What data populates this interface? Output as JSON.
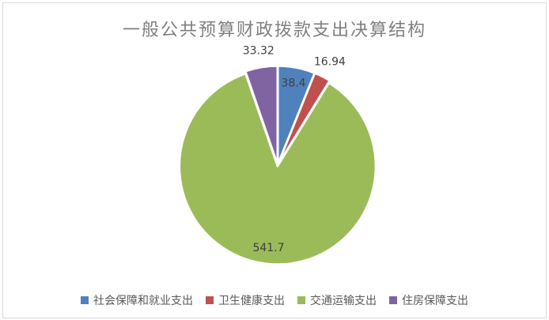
{
  "chart_data": {
    "type": "pie",
    "title": "一般公共预算财政拨款支出决算结构",
    "slices": [
      {
        "name": "社会保障和就业支出",
        "value": 38.4,
        "label": "38.4",
        "color": "#4f81bd",
        "label_position": "inside"
      },
      {
        "name": "卫生健康支出",
        "value": 16.94,
        "label": "16.94",
        "color": "#c0504d",
        "label_position": "outside"
      },
      {
        "name": "交通运输支出",
        "value": 541.7,
        "label": "541.7",
        "color": "#9bbb59",
        "label_position": "inside"
      },
      {
        "name": "住房保障支出",
        "value": 33.32,
        "label": "33.32",
        "color": "#8064a2",
        "label_position": "outside"
      }
    ],
    "start_angle_deg": 0,
    "direction": "clockwise",
    "legend_position": "bottom",
    "colors": {
      "title_text": "#7f7f7f",
      "data_label_text": "#404040",
      "legend_text": "#595959",
      "frame_border": "#d9d9d9",
      "slice_separator": "#ffffff"
    }
  }
}
